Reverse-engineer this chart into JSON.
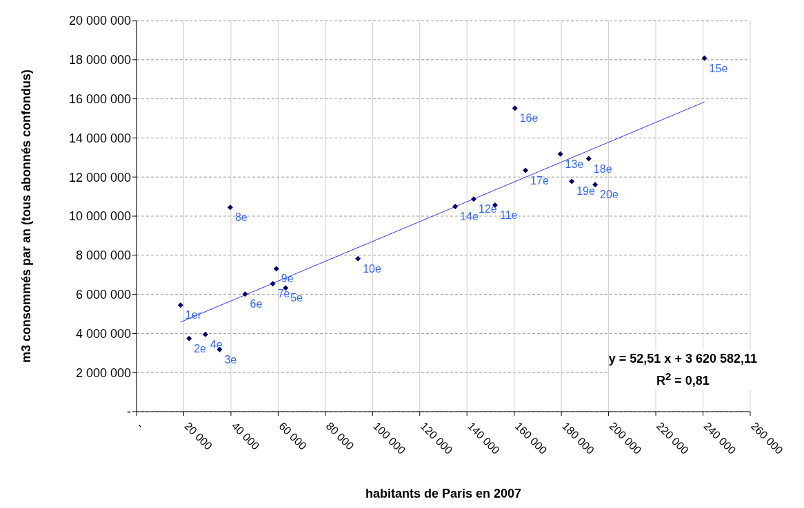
{
  "chart_data": {
    "type": "scatter",
    "xlabel": "habitants de Paris en 2007",
    "ylabel": "m3 consommés par an (tous abonnés confondus)",
    "xlim": [
      0,
      260000
    ],
    "xticks": [
      {
        "value": 0,
        "label": "-"
      },
      {
        "value": 20000,
        "label": "20 000"
      },
      {
        "value": 40000,
        "label": "40 000"
      },
      {
        "value": 60000,
        "label": "60 000"
      },
      {
        "value": 80000,
        "label": "80 000"
      },
      {
        "value": 100000,
        "label": "100 000"
      },
      {
        "value": 120000,
        "label": "120 000"
      },
      {
        "value": 140000,
        "label": "140 000"
      },
      {
        "value": 160000,
        "label": "160 000"
      },
      {
        "value": 180000,
        "label": "180 000"
      },
      {
        "value": 200000,
        "label": "200 000"
      },
      {
        "value": 220000,
        "label": "220 000"
      },
      {
        "value": 240000,
        "label": "240 000"
      },
      {
        "value": 260000,
        "label": "260 000"
      }
    ],
    "ylim": [
      0,
      20000000
    ],
    "yticks": [
      {
        "value": 0,
        "label": "-"
      },
      {
        "value": 2000000,
        "label": "2 000 000"
      },
      {
        "value": 4000000,
        "label": "4 000 000"
      },
      {
        "value": 6000000,
        "label": "6 000 000"
      },
      {
        "value": 8000000,
        "label": "8 000 000"
      },
      {
        "value": 10000000,
        "label": "10 000 000"
      },
      {
        "value": 12000000,
        "label": "12 000 000"
      },
      {
        "value": 14000000,
        "label": "14 000 000"
      },
      {
        "value": 16000000,
        "label": "16 000 000"
      },
      {
        "value": 18000000,
        "label": "18 000 000"
      },
      {
        "value": 20000000,
        "label": "20 000 000"
      }
    ],
    "grid": true,
    "legend": false,
    "series": [
      {
        "marker": "diamond",
        "color": "#000066",
        "x": [
          18650,
          22250,
          35190,
          29170,
          63160,
          46010,
          57740,
          39700,
          59250,
          93830,
          151900,
          142850,
          179550,
          135000,
          240600,
          160300,
          164800,
          191600,
          184400,
          194300
        ],
        "values": [
          5450000,
          3740000,
          3180000,
          3950000,
          6330000,
          6010000,
          6540000,
          10450000,
          7310000,
          7830000,
          10560000,
          10870000,
          13180000,
          10490000,
          18080000,
          15520000,
          12340000,
          12940000,
          11780000,
          11610000
        ]
      },
      {
        "type": "line",
        "marker": "none",
        "color": "#3333ff",
        "x": [
          18650,
          240600
        ],
        "values": [
          4580000,
          15840000
        ]
      }
    ],
    "annotations": [
      {
        "text": "1er",
        "x": 18650,
        "y": 5450000
      },
      {
        "text": "2e",
        "x": 22250,
        "y": 3740000
      },
      {
        "text": "3e",
        "x": 35190,
        "y": 3180000
      },
      {
        "text": "4e",
        "x": 29170,
        "y": 3950000
      },
      {
        "text": "5e",
        "x": 63160,
        "y": 6330000
      },
      {
        "text": "6e",
        "x": 46010,
        "y": 6010000
      },
      {
        "text": "7e",
        "x": 57740,
        "y": 6540000
      },
      {
        "text": "8e",
        "x": 39700,
        "y": 10450000
      },
      {
        "text": "9e",
        "x": 59250,
        "y": 7310000
      },
      {
        "text": "10e",
        "x": 93830,
        "y": 7830000
      },
      {
        "text": "11e",
        "x": 151900,
        "y": 10560000
      },
      {
        "text": "12e",
        "x": 142850,
        "y": 10870000
      },
      {
        "text": "13e",
        "x": 179550,
        "y": 13180000
      },
      {
        "text": "14e",
        "x": 135000,
        "y": 10490000
      },
      {
        "text": "15e",
        "x": 240600,
        "y": 18080000
      },
      {
        "text": "16e",
        "x": 160300,
        "y": 15520000
      },
      {
        "text": "17e",
        "x": 164800,
        "y": 12340000
      },
      {
        "text": "18e",
        "x": 191600,
        "y": 12940000
      },
      {
        "text": "19e",
        "x": 184400,
        "y": 11780000
      },
      {
        "text": "20e",
        "x": 194300,
        "y": 11610000
      },
      "y =  52,51   x +  3 620 582,11",
      "R$^{2}$ =  0,81"
    ]
  }
}
